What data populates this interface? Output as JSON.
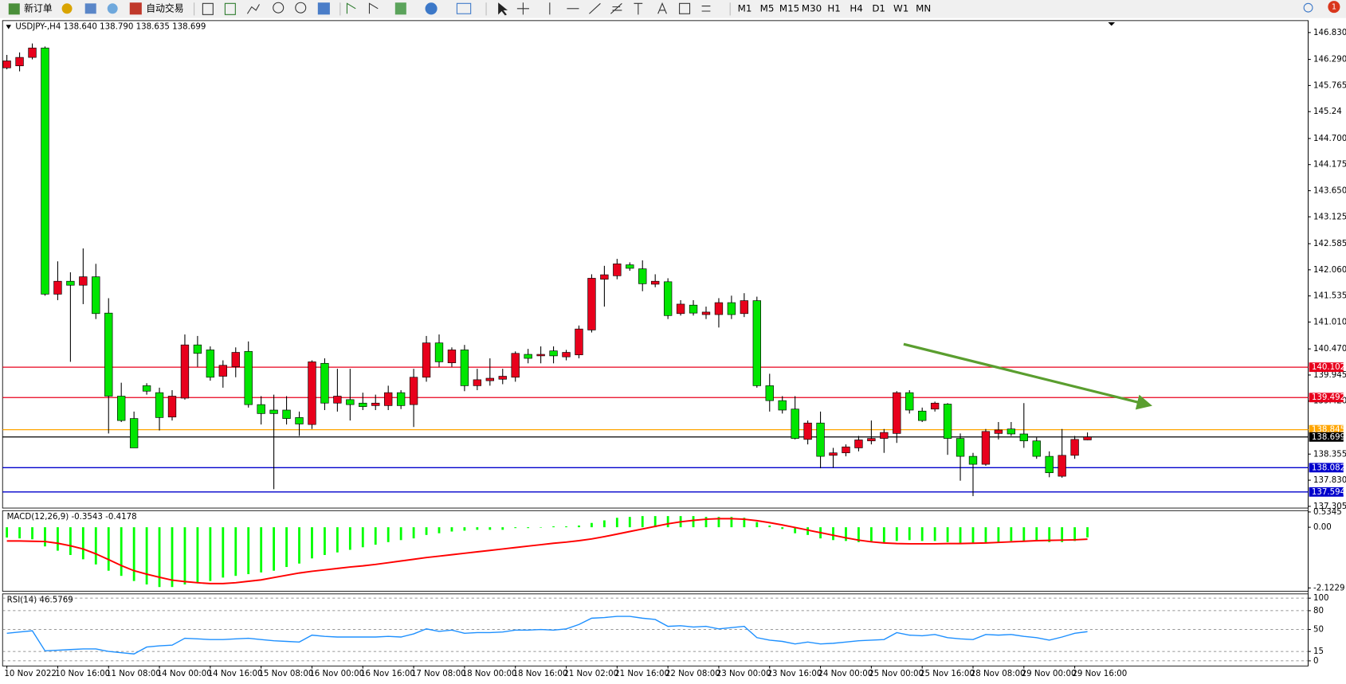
{
  "toolbar": {
    "new_order": "新订单",
    "auto_trading": "自动交易",
    "timeframes": [
      "M1",
      "M5",
      "M15",
      "M30",
      "H1",
      "H4",
      "D1",
      "W1",
      "MN"
    ],
    "notifications": "1"
  },
  "chart_data": [
    {
      "type": "candlestick",
      "title": "USDJPY-,H4 138.640 138.790 138.635 138.699",
      "categories": [
        "10 Nov 2022",
        null,
        null,
        null,
        "10 Nov 16:00",
        null,
        null,
        null,
        "11 Nov 08:00",
        null,
        null,
        null,
        "14 Nov 00:00",
        null,
        null,
        null,
        "14 Nov 16:00",
        null,
        null,
        null,
        "15 Nov 08:00",
        null,
        null,
        null,
        "16 Nov 00:00",
        null,
        null,
        null,
        "16 Nov 16:00",
        null,
        null,
        null,
        "17 Nov 08:00",
        null,
        null,
        null,
        "18 Nov 00:00",
        null,
        null,
        null,
        "18 Nov 16:00",
        null,
        null,
        null,
        "21 Nov 02:00",
        null,
        null,
        null,
        "21 Nov 16:00",
        null,
        null,
        null,
        "22 Nov 08:00",
        null,
        null,
        null,
        "23 Nov 00:00",
        null,
        null,
        null,
        "23 Nov 16:00",
        null,
        null,
        null,
        "24 Nov 00:00",
        null,
        null,
        null,
        "25 Nov 00:00",
        null,
        null,
        null,
        "25 Nov 16:00",
        null,
        null,
        null,
        "28 Nov 08:00",
        null,
        null,
        null,
        "29 Nov 00:00",
        null,
        null,
        null,
        "29 Nov 16:00",
        null
      ],
      "open": [
        146.12,
        146.16,
        146.33,
        146.52,
        141.57,
        141.83,
        141.75,
        141.92,
        141.19,
        139.52,
        139.07,
        139.73,
        139.59,
        139.1,
        139.48,
        140.55,
        140.45,
        139.92,
        140.11,
        140.42,
        139.35,
        139.24,
        139.24,
        139.09,
        138.95,
        140.18,
        139.38,
        139.45,
        139.38,
        139.33,
        139.33,
        139.59,
        139.35,
        139.9,
        140.59,
        140.19,
        140.45,
        139.73,
        139.83,
        139.86,
        139.9,
        140.36,
        140.33,
        140.43,
        140.31,
        140.35,
        140.85,
        141.87,
        141.94,
        142.16,
        142.08,
        141.77,
        141.82,
        141.18,
        141.35,
        141.16,
        141.16,
        141.4,
        141.18,
        141.44,
        139.73,
        139.43,
        139.26,
        138.65,
        138.98,
        138.33,
        138.38,
        138.48,
        138.62,
        138.67,
        138.77,
        139.59,
        139.22,
        139.26,
        139.36,
        138.67,
        138.31,
        138.15,
        138.77,
        138.86,
        138.76,
        138.62,
        138.31,
        137.91,
        138.33,
        138.64
      ],
      "high": [
        146.38,
        146.43,
        146.61,
        146.55,
        142.23,
        142.01,
        142.49,
        142.18,
        141.49,
        139.79,
        139.21,
        139.78,
        139.69,
        139.64,
        140.76,
        140.73,
        140.52,
        140.24,
        140.5,
        140.62,
        139.52,
        139.55,
        139.52,
        139.21,
        140.24,
        140.28,
        140.07,
        140.07,
        139.59,
        139.55,
        139.73,
        139.64,
        140.07,
        140.73,
        140.76,
        140.5,
        140.55,
        140.07,
        140.28,
        140.07,
        140.42,
        140.47,
        140.52,
        140.52,
        140.45,
        140.94,
        141.97,
        142.14,
        142.28,
        142.21,
        142.25,
        141.97,
        141.89,
        141.45,
        141.45,
        141.32,
        141.49,
        141.54,
        141.59,
        141.52,
        139.97,
        139.52,
        139.52,
        139.03,
        139.21,
        138.48,
        138.55,
        138.72,
        139.03,
        138.86,
        139.62,
        139.64,
        139.29,
        139.41,
        139.38,
        138.77,
        138.38,
        138.86,
        139.0,
        139.0,
        139.38,
        138.69,
        138.41,
        138.86,
        138.72,
        138.79
      ],
      "low": [
        146.09,
        146.05,
        146.29,
        141.54,
        141.45,
        140.21,
        141.37,
        141.07,
        138.77,
        139.0,
        138.48,
        139.55,
        138.83,
        139.03,
        139.45,
        140.11,
        139.83,
        139.69,
        139.9,
        139.29,
        138.95,
        137.65,
        138.95,
        138.72,
        138.86,
        139.24,
        139.21,
        139.03,
        139.24,
        139.24,
        139.24,
        139.26,
        138.9,
        139.81,
        140.11,
        140.11,
        139.62,
        139.64,
        139.73,
        139.76,
        139.81,
        140.18,
        140.18,
        140.18,
        140.24,
        140.28,
        140.8,
        141.32,
        141.87,
        142.04,
        141.63,
        141.71,
        141.07,
        141.14,
        141.14,
        141.07,
        140.9,
        141.07,
        141.11,
        139.69,
        139.21,
        139.17,
        138.65,
        138.55,
        138.07,
        138.08,
        138.31,
        138.41,
        138.55,
        138.38,
        138.58,
        139.17,
        139.0,
        139.21,
        138.34,
        137.82,
        137.51,
        138.12,
        138.65,
        138.72,
        138.48,
        138.26,
        137.89,
        137.88,
        138.26,
        138.635
      ],
      "close": [
        146.26,
        146.33,
        146.52,
        141.57,
        141.83,
        141.75,
        141.92,
        141.18,
        139.52,
        139.03,
        138.48,
        139.62,
        139.09,
        139.52,
        140.55,
        140.38,
        139.9,
        140.14,
        140.4,
        139.35,
        139.17,
        139.17,
        139.07,
        138.96,
        140.21,
        139.38,
        139.52,
        139.35,
        139.31,
        139.38,
        139.59,
        139.33,
        139.9,
        140.59,
        140.21,
        140.45,
        139.73,
        139.85,
        139.88,
        139.92,
        140.38,
        140.28,
        140.36,
        140.33,
        140.4,
        140.87,
        141.89,
        141.96,
        142.18,
        142.09,
        141.78,
        141.83,
        141.14,
        141.37,
        141.19,
        141.21,
        141.4,
        141.16,
        141.44,
        139.73,
        139.43,
        139.24,
        138.67,
        138.98,
        138.31,
        138.38,
        138.5,
        138.64,
        138.67,
        138.79,
        139.59,
        139.24,
        139.03,
        139.38,
        138.67,
        138.31,
        138.15,
        138.81,
        138.84,
        138.76,
        138.62,
        138.31,
        137.98,
        138.33,
        138.65,
        138.699
      ],
      "up_color": "#e8001c",
      "down_color": "#00e600",
      "ylim": [
        137.27,
        147.07
      ],
      "yticks": [
        {
          "value": 146.83,
          "label": "146.830"
        },
        {
          "value": 146.29,
          "label": "146.290"
        },
        145.765,
        145.24,
        {
          "value": 144.7,
          "label": "144.700"
        },
        144.175,
        {
          "value": 143.65,
          "label": "143.650"
        },
        143.125,
        142.585,
        {
          "value": 142.06,
          "label": "142.060"
        },
        141.535,
        {
          "value": 141.01,
          "label": "141.010"
        },
        {
          "value": 140.47,
          "label": "140.470"
        },
        139.945,
        {
          "value": 139.42,
          "label": "139.420"
        },
        138.355,
        {
          "value": 137.83,
          "label": "137.830"
        },
        137.305
      ],
      "hlines": [
        {
          "value": 140.102,
          "color": "#e8001c"
        },
        {
          "value": 139.492,
          "color": "#e8001c"
        },
        {
          "value": 138.845,
          "color": "#ffa500"
        },
        {
          "value": 138.699,
          "color": "#000000"
        },
        {
          "value": 138.082,
          "color": "#0000cc"
        },
        {
          "value": 137.594,
          "color": "#0000cc"
        }
      ]
    },
    {
      "type": "macd",
      "title": "MACD(12,26,9) -0.3543 -0.4178",
      "ylim": [
        -2.24,
        0.58
      ],
      "yticks": [
        0.5345,
        {
          "value": 0,
          "label": "0.00"
        },
        -2.1229
      ],
      "series": [
        {
          "type": "bar",
          "color": "#00ff00",
          "values": [
            -0.36,
            -0.39,
            -0.42,
            -0.67,
            -0.82,
            -0.97,
            -1.12,
            -1.3,
            -1.52,
            -1.7,
            -1.88,
            -2.0,
            -2.09,
            -2.09,
            -2.0,
            -1.94,
            -1.88,
            -1.76,
            -1.7,
            -1.64,
            -1.58,
            -1.52,
            -1.39,
            -1.27,
            -1.09,
            -0.97,
            -0.88,
            -0.79,
            -0.7,
            -0.61,
            -0.52,
            -0.45,
            -0.39,
            -0.27,
            -0.21,
            -0.15,
            -0.12,
            -0.09,
            -0.09,
            -0.09,
            -0.03,
            -0.03,
            0,
            0.03,
            0.03,
            0.06,
            0.15,
            0.24,
            0.33,
            0.36,
            0.39,
            0.39,
            0.39,
            0.39,
            0.39,
            0.36,
            0.36,
            0.36,
            0.33,
            0.18,
            0.06,
            -0.06,
            -0.21,
            -0.27,
            -0.39,
            -0.45,
            -0.48,
            -0.52,
            -0.52,
            -0.55,
            -0.48,
            -0.45,
            -0.48,
            -0.48,
            -0.52,
            -0.55,
            -0.58,
            -0.55,
            -0.52,
            -0.48,
            -0.48,
            -0.48,
            -0.52,
            -0.52,
            -0.48,
            -0.3543
          ]
        },
        {
          "type": "line",
          "color": "#ff0000",
          "values": [
            -0.48,
            -0.48,
            -0.49,
            -0.5,
            -0.56,
            -0.65,
            -0.76,
            -0.93,
            -1.13,
            -1.34,
            -1.52,
            -1.64,
            -1.75,
            -1.85,
            -1.9,
            -1.94,
            -1.97,
            -1.97,
            -1.94,
            -1.89,
            -1.84,
            -1.76,
            -1.68,
            -1.6,
            -1.54,
            -1.49,
            -1.44,
            -1.39,
            -1.35,
            -1.3,
            -1.24,
            -1.18,
            -1.12,
            -1.06,
            -1.01,
            -0.96,
            -0.91,
            -0.86,
            -0.81,
            -0.76,
            -0.71,
            -0.66,
            -0.61,
            -0.56,
            -0.52,
            -0.47,
            -0.41,
            -0.33,
            -0.24,
            -0.15,
            -0.06,
            0.03,
            0.12,
            0.19,
            0.24,
            0.28,
            0.3,
            0.3,
            0.28,
            0.23,
            0.16,
            0.08,
            -0.01,
            -0.1,
            -0.19,
            -0.28,
            -0.37,
            -0.45,
            -0.51,
            -0.55,
            -0.57,
            -0.58,
            -0.58,
            -0.58,
            -0.57,
            -0.57,
            -0.56,
            -0.55,
            -0.53,
            -0.51,
            -0.49,
            -0.47,
            -0.46,
            -0.45,
            -0.44,
            -0.4178
          ]
        }
      ]
    },
    {
      "type": "line",
      "title": "RSI(14) 46.5769",
      "ylim": [
        -8.2,
        106.8
      ],
      "yticks": [
        100,
        80,
        50,
        15,
        0
      ],
      "grid": true,
      "series": [
        {
          "type": "line",
          "color": "#1e90ff",
          "values": [
            44,
            46,
            48,
            16,
            17,
            18,
            19,
            19,
            15,
            13,
            11,
            22,
            24,
            25,
            36,
            35,
            34,
            34,
            35,
            36,
            34,
            32,
            31,
            30,
            41,
            39,
            38,
            38,
            38,
            38,
            39,
            38,
            43,
            51,
            47,
            49,
            44,
            45,
            45,
            46,
            49,
            49,
            50,
            49,
            51,
            58,
            68,
            69,
            71,
            71,
            68,
            66,
            55,
            56,
            54,
            55,
            51,
            53,
            55,
            37,
            33,
            31,
            27,
            30,
            27,
            28,
            30,
            32,
            33,
            34,
            45,
            41,
            40,
            42,
            37,
            35,
            34,
            42,
            41,
            42,
            39,
            37,
            33,
            38,
            44,
            46.5769
          ]
        }
      ]
    }
  ]
}
